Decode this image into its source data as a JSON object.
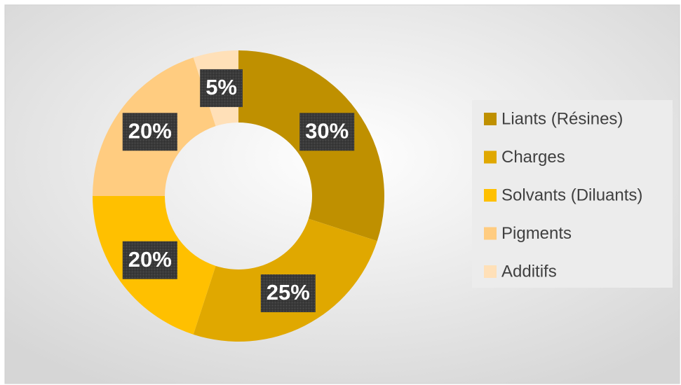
{
  "chart_data": {
    "type": "donut",
    "categories": [
      "Liants (Résines)",
      "Charges",
      "Solvants (Diluants)",
      "Pigments",
      "Additifs"
    ],
    "values": [
      30,
      25,
      20,
      20,
      5
    ],
    "value_labels": [
      "30%",
      "25%",
      "20%",
      "20%",
      "5%"
    ],
    "colors": [
      "#bf9000",
      "#e0a800",
      "#ffc000",
      "#ffcc80",
      "#ffe0b8"
    ],
    "legend": "right"
  }
}
